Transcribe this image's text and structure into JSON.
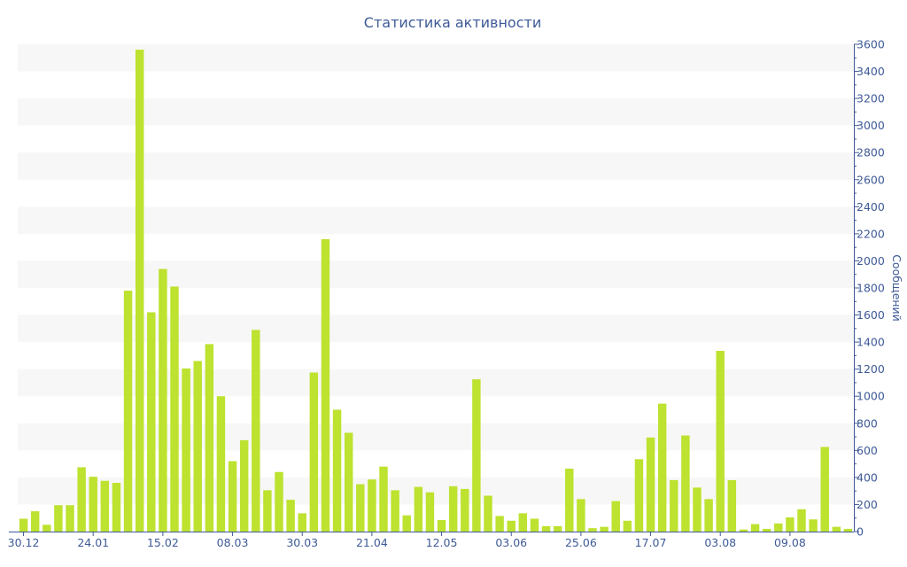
{
  "chart_data": {
    "type": "bar",
    "title": "Статистика активности",
    "ylabel": "Сообщений",
    "ylim": [
      0,
      3600
    ],
    "y_ticks": [
      0,
      200,
      400,
      600,
      800,
      1000,
      1200,
      1400,
      1600,
      1800,
      2000,
      2200,
      2400,
      2600,
      2800,
      3000,
      3200,
      3400,
      3600
    ],
    "y_axis_side": "right",
    "bar_color": "#bde22f",
    "band_color": "#f7f7f7",
    "axis_color": "#3e5a97",
    "x_tick_labels": [
      {
        "label": "30.12",
        "index": 0
      },
      {
        "label": "24.01",
        "index": 6
      },
      {
        "label": "15.02",
        "index": 12
      },
      {
        "label": "08.03",
        "index": 18
      },
      {
        "label": "30.03",
        "index": 24
      },
      {
        "label": "21.04",
        "index": 30
      },
      {
        "label": "12.05",
        "index": 36
      },
      {
        "label": "03.06",
        "index": 42
      },
      {
        "label": "25.06",
        "index": 48
      },
      {
        "label": "17.07",
        "index": 54
      },
      {
        "label": "03.08",
        "index": 60
      },
      {
        "label": "09.08",
        "index": 66
      }
    ],
    "values": [
      95,
      150,
      50,
      195,
      195,
      475,
      405,
      375,
      360,
      1780,
      3560,
      1620,
      1940,
      1810,
      1205,
      1260,
      1385,
      1000,
      520,
      675,
      1490,
      305,
      440,
      235,
      135,
      1175,
      2160,
      900,
      730,
      350,
      385,
      480,
      305,
      120,
      330,
      290,
      85,
      335,
      315,
      1125,
      265,
      115,
      80,
      135,
      95,
      40,
      40,
      465,
      240,
      25,
      35,
      225,
      80,
      535,
      695,
      945,
      380,
      710,
      325,
      240,
      1335,
      380,
      15,
      55,
      20,
      60,
      105,
      165,
      90,
      625,
      35,
      20
    ]
  }
}
